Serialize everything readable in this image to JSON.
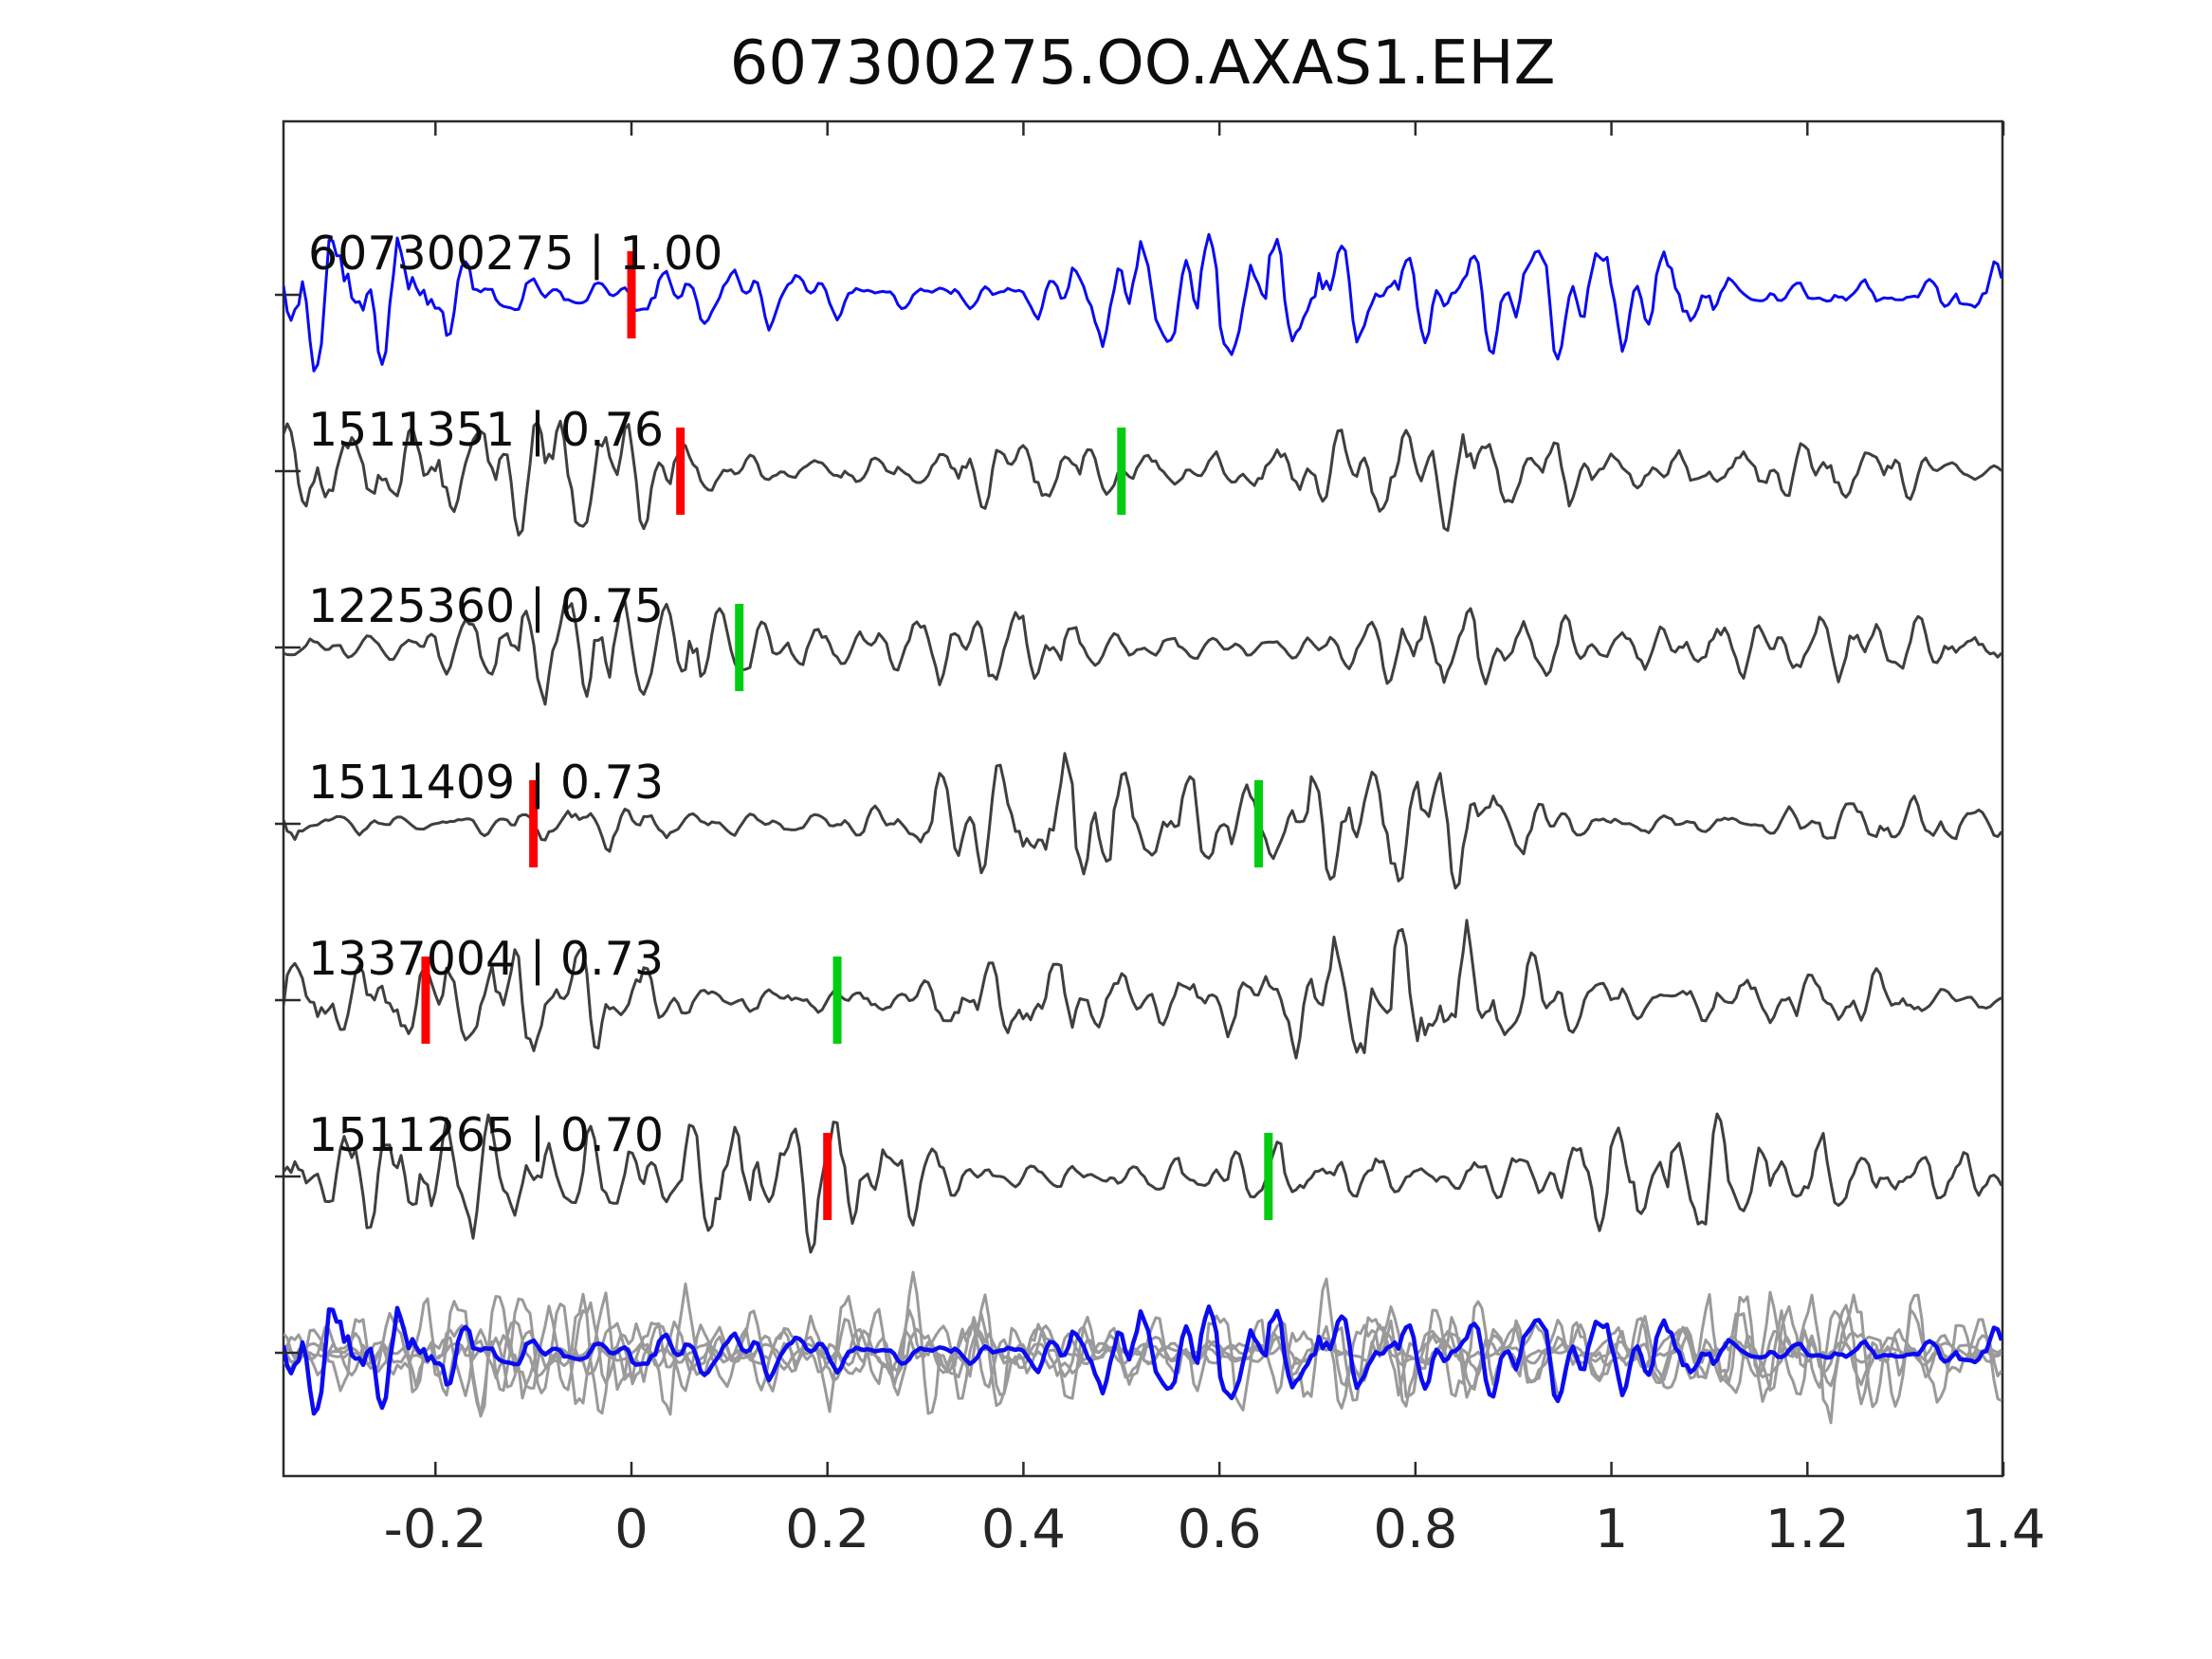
{
  "title": "607300275.OO.AXAS1.EHZ",
  "colors": {
    "template_blue": "#0b0bf2",
    "detection_gray": "#3f3f3f",
    "overlay_gray": "#9a9a9a",
    "pick_red": "#ff0000",
    "pick_green": "#00cc11",
    "axis": "#2b2b2b"
  },
  "axis": {
    "x_min": -0.355,
    "x_max": 1.4,
    "x_ticks": [
      {
        "v": -0.2,
        "label": "-0.2"
      },
      {
        "v": 0.0,
        "label": "0"
      },
      {
        "v": 0.2,
        "label": "0.2"
      },
      {
        "v": 0.4,
        "label": "0.4"
      },
      {
        "v": 0.6,
        "label": "0.6"
      },
      {
        "v": 0.8,
        "label": "0.8"
      },
      {
        "v": 1.0,
        "label": "1"
      },
      {
        "v": 1.2,
        "label": "1.2"
      },
      {
        "v": 1.4,
        "label": "1.4"
      }
    ]
  },
  "chart_data": {
    "type": "line",
    "title": "607300275.OO.AXAS1.EHZ",
    "x_range": [
      -0.355,
      1.4
    ],
    "x_tick_labels": [
      "-0.2",
      "0",
      "0.2",
      "0.4",
      "0.6",
      "0.8",
      "1",
      "1.2",
      "1.4"
    ],
    "grid": false,
    "legend": "none",
    "description": "Seismic waveform template-match panel: template event 607300275 (blue) over five detected events (gray) with cross-correlation values; red ticks = reference picks, green ticks = detection picks; bottom row overlays all traces.",
    "traces": [
      {
        "id": "607300275",
        "correlation": "1.00",
        "label": "607300275 | 1.00",
        "line": "template",
        "picks": [
          {
            "color": "red",
            "x": 0.0
          }
        ]
      },
      {
        "id": "1511351",
        "correlation": "0.76",
        "label": "1511351 | 0.76",
        "line": "detection",
        "picks": [
          {
            "color": "red",
            "x": 0.05
          },
          {
            "color": "green",
            "x": 0.5
          }
        ]
      },
      {
        "id": "1225360",
        "correlation": "0.75",
        "label": "1225360 | 0.75",
        "line": "detection",
        "picks": [
          {
            "color": "green",
            "x": 0.11
          }
        ]
      },
      {
        "id": "1511409",
        "correlation": "0.73",
        "label": "1511409 | 0.73",
        "line": "detection",
        "picks": [
          {
            "color": "red",
            "x": -0.1
          },
          {
            "color": "green",
            "x": 0.64
          }
        ]
      },
      {
        "id": "1337004",
        "correlation": "0.73",
        "label": "1337004 | 0.73",
        "line": "detection",
        "picks": [
          {
            "color": "red",
            "x": -0.21
          },
          {
            "color": "green",
            "x": 0.21
          }
        ]
      },
      {
        "id": "1511265",
        "correlation": "0.70",
        "label": "1511265 | 0.70",
        "line": "detection",
        "picks": [
          {
            "color": "red",
            "x": 0.2
          },
          {
            "color": "green",
            "x": 0.65
          }
        ]
      },
      {
        "id": "overlay",
        "correlation": "",
        "label": "",
        "line": "overlay",
        "picks": []
      }
    ]
  },
  "waveform_render": {
    "seeds": [
      101,
      202,
      303,
      404,
      505,
      606
    ],
    "overlay_gray_seeds": [
      711,
      812,
      913,
      1014,
      1115
    ],
    "overlay_blue_seed": 101,
    "envelopes": [
      [
        [
          -0.36,
          0.9
        ],
        [
          0.0,
          1.0
        ],
        [
          0.3,
          1.0
        ],
        [
          0.7,
          1.05
        ],
        [
          1.4,
          0.95
        ]
      ],
      [
        [
          -0.36,
          0.95
        ],
        [
          0.2,
          1.1
        ],
        [
          0.5,
          0.9
        ],
        [
          0.8,
          0.6
        ],
        [
          1.4,
          0.75
        ]
      ],
      [
        [
          -0.36,
          0.35
        ],
        [
          0.0,
          0.8
        ],
        [
          0.15,
          1.1
        ],
        [
          0.45,
          1.15
        ],
        [
          0.7,
          0.7
        ],
        [
          1.0,
          0.5
        ],
        [
          1.4,
          0.55
        ]
      ],
      [
        [
          -0.36,
          0.45
        ],
        [
          -0.1,
          0.5
        ],
        [
          0.1,
          0.9
        ],
        [
          0.4,
          1.0
        ],
        [
          0.75,
          1.1
        ],
        [
          1.0,
          0.8
        ],
        [
          1.4,
          0.6
        ]
      ],
      [
        [
          -0.36,
          0.85
        ],
        [
          0.2,
          0.9
        ],
        [
          0.55,
          1.1
        ],
        [
          0.9,
          0.8
        ],
        [
          1.4,
          0.75
        ]
      ],
      [
        [
          -0.36,
          0.9
        ],
        [
          0.25,
          1.05
        ],
        [
          0.6,
          0.9
        ],
        [
          1.0,
          0.8
        ],
        [
          1.4,
          0.8
        ]
      ],
      [
        [
          -0.36,
          0.85
        ],
        [
          0.4,
          0.95
        ],
        [
          1.4,
          0.85
        ]
      ]
    ]
  }
}
